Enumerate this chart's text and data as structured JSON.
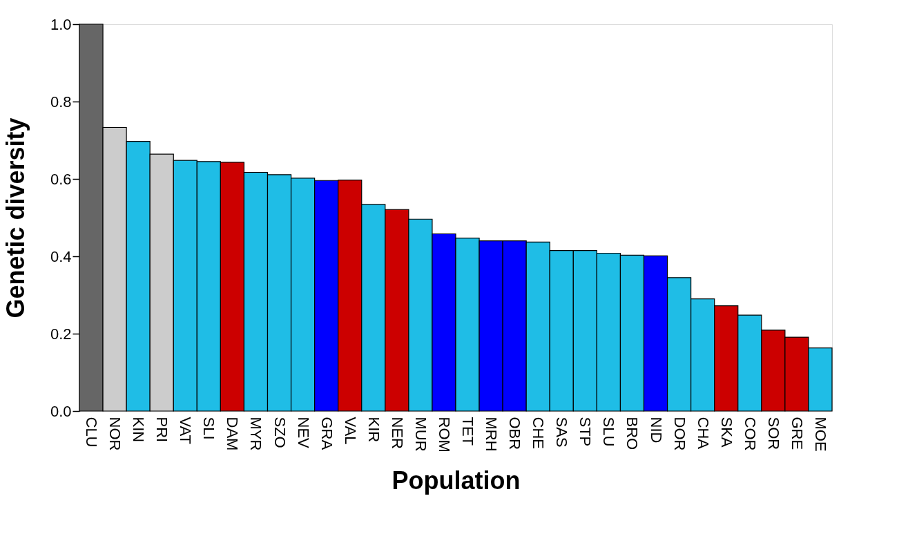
{
  "chart_data": {
    "type": "bar",
    "xlabel": "Population",
    "ylabel": "Genetic diversity",
    "categories": [
      "CLU",
      "NOR",
      "KIN",
      "PRI",
      "VAT",
      "SLI",
      "DAM",
      "MYR",
      "SZO",
      "NEV",
      "GRA",
      "VAL",
      "KIR",
      "NER",
      "MUR",
      "ROM",
      "TET",
      "MRH",
      "OBR",
      "CHE",
      "SAS",
      "STP",
      "SLU",
      "BRO",
      "NID",
      "DOR",
      "CHA",
      "SKA",
      "COR",
      "SOR",
      "GRE",
      "MOE"
    ],
    "values": [
      1.0,
      0.733,
      0.697,
      0.664,
      0.648,
      0.645,
      0.643,
      0.617,
      0.611,
      0.602,
      0.596,
      0.597,
      0.534,
      0.521,
      0.496,
      0.458,
      0.447,
      0.44,
      0.44,
      0.437,
      0.415,
      0.415,
      0.408,
      0.403,
      0.401,
      0.345,
      0.29,
      0.272,
      0.248,
      0.209,
      0.191,
      0.163
    ],
    "colors": [
      "#666666",
      "#cccccc",
      "#1fbde6",
      "#cccccc",
      "#1fbde6",
      "#1fbde6",
      "#cc0000",
      "#1fbde6",
      "#1fbde6",
      "#1fbde6",
      "#0000ff",
      "#cc0000",
      "#1fbde6",
      "#cc0000",
      "#1fbde6",
      "#0000ff",
      "#1fbde6",
      "#0000ff",
      "#0000ff",
      "#1fbde6",
      "#1fbde6",
      "#1fbde6",
      "#1fbde6",
      "#1fbde6",
      "#0000ff",
      "#1fbde6",
      "#1fbde6",
      "#cc0000",
      "#1fbde6",
      "#cc0000",
      "#cc0000",
      "#1fbde6"
    ],
    "ylim": [
      0,
      1.0
    ],
    "yticks": [
      {
        "value": 0,
        "label": "0.0"
      },
      {
        "value": 0.2,
        "label": "0.2"
      },
      {
        "value": 0.4,
        "label": "0.4"
      },
      {
        "value": 0.6,
        "label": "0.6"
      },
      {
        "value": 0.8,
        "label": "0.8"
      },
      {
        "value": 1.0,
        "label": "1.0"
      }
    ],
    "grid": false
  }
}
